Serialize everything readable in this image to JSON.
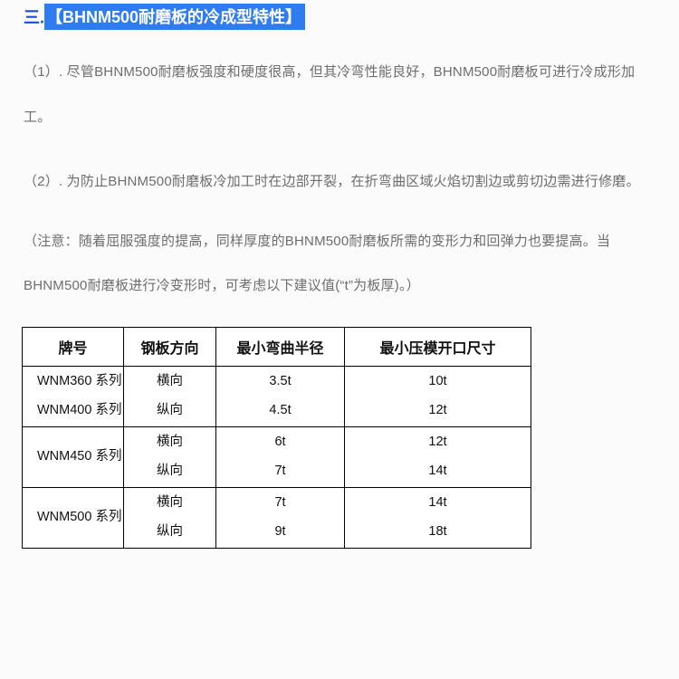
{
  "heading": {
    "prefix": "三.",
    "title": "【BHNM500耐磨板的冷成型特性】"
  },
  "paragraphs": {
    "p1": "（1）. 尽管BHNM500耐磨板强度和硬度很高，但其冷弯性能良好，BHNM500耐磨板可进行冷成形加工。",
    "p2": "（2）. 为防止BHNM500耐磨板冷加工时在边部开裂，在折弯曲区域火焰切割边或剪切边需进行修磨。",
    "p3": "（注意：随着屈服强度的提高，同样厚度的BHNM500耐磨板所需的变形力和回弹力也要提高。当BHNM500耐磨板进行冷变形时，可考虑以下建议值(“t”为板厚)。）"
  },
  "table": {
    "headers": {
      "c1": "牌号",
      "c2": "钢板方向",
      "c3": "最小弯曲半径",
      "c4": "最小压模开口尺寸"
    },
    "rows": [
      {
        "series": [
          "WNM360 系列",
          "WNM400 系列"
        ],
        "dir": [
          "横向",
          "纵向"
        ],
        "radius": [
          "3.5t",
          "4.5t"
        ],
        "opening": [
          "10t",
          "12t"
        ]
      },
      {
        "series": [
          "WNM450 系列"
        ],
        "dir": [
          "横向",
          "纵向"
        ],
        "radius": [
          "6t",
          "7t"
        ],
        "opening": [
          "12t",
          "14t"
        ]
      },
      {
        "series": [
          "WNM500 系列"
        ],
        "dir": [
          "横向",
          "纵向"
        ],
        "radius": [
          "7t",
          "9t"
        ],
        "opening": [
          "14t",
          "18t"
        ]
      }
    ]
  }
}
